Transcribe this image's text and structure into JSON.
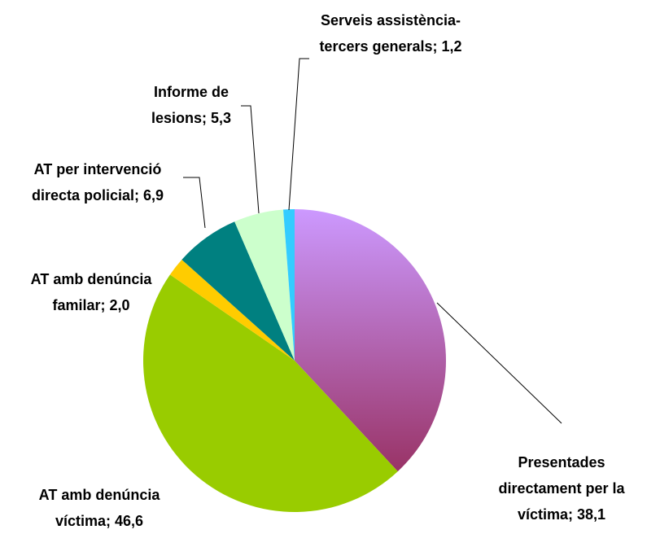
{
  "chart_data": {
    "type": "pie",
    "values": [
      38.1,
      46.6,
      2.0,
      6.9,
      5.3,
      1.2
    ],
    "value_labels": [
      "Presentades directament per la víctima; 38,1",
      "AT amb denúncia víctima; 46,6",
      "AT amb denúncia familar; 2,0",
      "AT per intervenció directa policial; 6,9",
      "Informe de lesions; 5,3",
      "Serveis assistència-tercers generals; 1,2"
    ],
    "colors": [
      "#b67fd6",
      "#99cc00",
      "#ffcc00",
      "#008080",
      "#ccffcc",
      "#33ccff"
    ]
  }
}
